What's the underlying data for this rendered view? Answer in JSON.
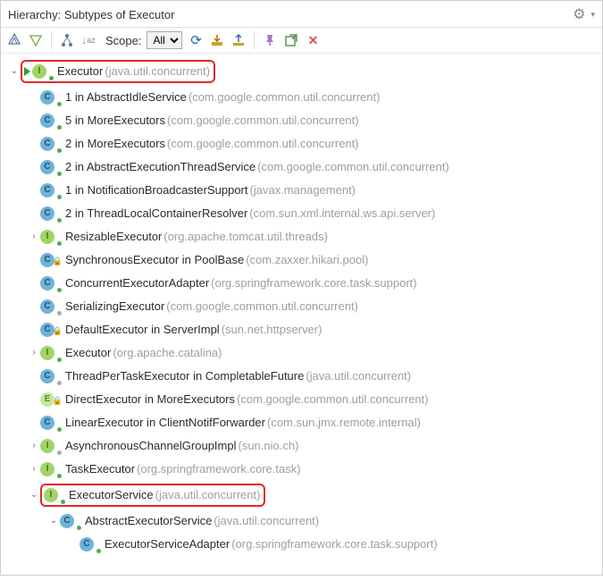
{
  "header": {
    "title": "Hierarchy: Subtypes of Executor"
  },
  "toolbar": {
    "scope_label": "Scope:",
    "scope_selected": "All"
  },
  "tree": {
    "nodes": [
      {
        "indent": 0,
        "twisty": "down",
        "icon": "I",
        "deco": "green",
        "runMarker": true,
        "name": "Executor",
        "pkg": "(java.util.concurrent)",
        "highlight": true
      },
      {
        "indent": 1,
        "twisty": "none",
        "icon": "C",
        "deco": "green",
        "name": "1 in AbstractIdleService",
        "pkg": "(com.google.common.util.concurrent)"
      },
      {
        "indent": 1,
        "twisty": "none",
        "icon": "C",
        "deco": "green",
        "name": "5 in MoreExecutors",
        "pkg": "(com.google.common.util.concurrent)"
      },
      {
        "indent": 1,
        "twisty": "none",
        "icon": "C",
        "deco": "green",
        "name": "2 in MoreExecutors",
        "pkg": "(com.google.common.util.concurrent)"
      },
      {
        "indent": 1,
        "twisty": "none",
        "icon": "C",
        "deco": "green",
        "name": "2 in AbstractExecutionThreadService",
        "pkg": "(com.google.common.util.concurrent)"
      },
      {
        "indent": 1,
        "twisty": "none",
        "icon": "C",
        "deco": "green",
        "name": "1 in NotificationBroadcasterSupport",
        "pkg": "(javax.management)"
      },
      {
        "indent": 1,
        "twisty": "none",
        "icon": "C",
        "deco": "green",
        "name": "2 in ThreadLocalContainerResolver",
        "pkg": "(com.sun.xml.internal.ws.api.server)"
      },
      {
        "indent": 1,
        "twisty": "right",
        "icon": "I",
        "deco": "green",
        "name": "ResizableExecutor",
        "pkg": "(org.apache.tomcat.util.threads)"
      },
      {
        "indent": 1,
        "twisty": "none",
        "icon": "C",
        "deco": "lock",
        "name": "SynchronousExecutor in PoolBase",
        "pkg": "(com.zaxxer.hikari.pool)"
      },
      {
        "indent": 1,
        "twisty": "none",
        "icon": "C",
        "deco": "green",
        "name": "ConcurrentExecutorAdapter",
        "pkg": "(org.springframework.core.task.support)"
      },
      {
        "indent": 1,
        "twisty": "none",
        "icon": "C",
        "deco": "gray",
        "name": "SerializingExecutor",
        "pkg": "(com.google.common.util.concurrent)"
      },
      {
        "indent": 1,
        "twisty": "none",
        "icon": "C",
        "deco": "lock",
        "name": "DefaultExecutor in ServerImpl",
        "pkg": "(sun.net.httpserver)"
      },
      {
        "indent": 1,
        "twisty": "right",
        "icon": "I",
        "deco": "green",
        "name": "Executor",
        "pkg": "(org.apache.catalina)"
      },
      {
        "indent": 1,
        "twisty": "none",
        "icon": "C",
        "deco": "gray",
        "name": "ThreadPerTaskExecutor in CompletableFuture",
        "pkg": "(java.util.concurrent)"
      },
      {
        "indent": 1,
        "twisty": "none",
        "icon": "E",
        "deco": "lock",
        "name": "DirectExecutor in MoreExecutors",
        "pkg": "(com.google.common.util.concurrent)"
      },
      {
        "indent": 1,
        "twisty": "none",
        "icon": "C",
        "deco": "green",
        "name": "LinearExecutor in ClientNotifForwarder",
        "pkg": "(com.sun.jmx.remote.internal)"
      },
      {
        "indent": 1,
        "twisty": "right",
        "icon": "I",
        "deco": "gray",
        "name": "AsynchronousChannelGroupImpl",
        "pkg": "(sun.nio.ch)"
      },
      {
        "indent": 1,
        "twisty": "right",
        "icon": "I",
        "deco": "green",
        "name": "TaskExecutor",
        "pkg": "(org.springframework.core.task)"
      },
      {
        "indent": 1,
        "twisty": "down",
        "icon": "I",
        "deco": "green",
        "name": "ExecutorService",
        "pkg": "(java.util.concurrent)",
        "highlight": true
      },
      {
        "indent": 2,
        "twisty": "down",
        "icon": "C",
        "deco": "green",
        "name": "AbstractExecutorService",
        "pkg": "(java.util.concurrent)"
      },
      {
        "indent": 3,
        "twisty": "none",
        "icon": "C",
        "deco": "green",
        "name": "ExecutorServiceAdapter",
        "pkg": "(org.springframework.core.task.support)"
      }
    ]
  },
  "colors": {
    "highlight_border": "#e22828",
    "name_color": "#2b2b2b",
    "pkg_color": "#9e9e9e"
  }
}
